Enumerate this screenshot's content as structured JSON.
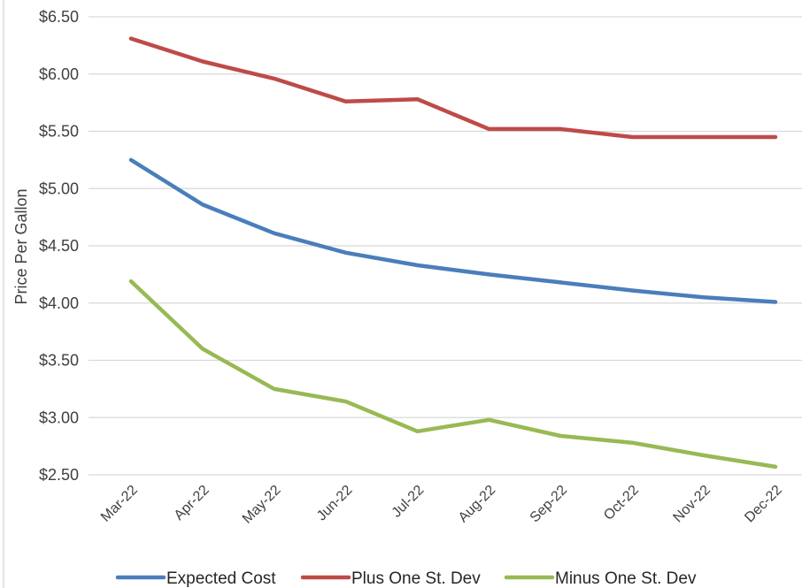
{
  "chart_data": {
    "type": "line",
    "categories": [
      "Mar-22",
      "Apr-22",
      "May-22",
      "Jun-22",
      "Jul-22",
      "Aug-22",
      "Sep-22",
      "Oct-22",
      "Nov-22",
      "Dec-22"
    ],
    "ylabel": "Price Per Gallon",
    "xlabel": "",
    "ylim": [
      2.5,
      6.5
    ],
    "yticks": [
      "$2.50",
      "$3.00",
      "$3.50",
      "$4.00",
      "$4.50",
      "$5.00",
      "$5.50",
      "$6.00",
      "$6.50"
    ],
    "grid": true,
    "legend_position": "bottom",
    "series": [
      {
        "name": "Expected Cost",
        "color": "#4a7ebb",
        "values": [
          5.25,
          4.86,
          4.61,
          4.44,
          4.33,
          4.25,
          4.18,
          4.11,
          4.05,
          4.01
        ]
      },
      {
        "name": "Plus One St. Dev",
        "color": "#be4b48",
        "values": [
          6.31,
          6.11,
          5.96,
          5.76,
          5.78,
          5.52,
          5.52,
          5.45,
          5.45,
          5.45
        ]
      },
      {
        "name": "Minus One St. Dev",
        "color": "#98b954",
        "values": [
          4.19,
          3.6,
          3.25,
          3.14,
          2.88,
          2.98,
          2.84,
          2.78,
          2.67,
          2.57
        ]
      }
    ]
  }
}
